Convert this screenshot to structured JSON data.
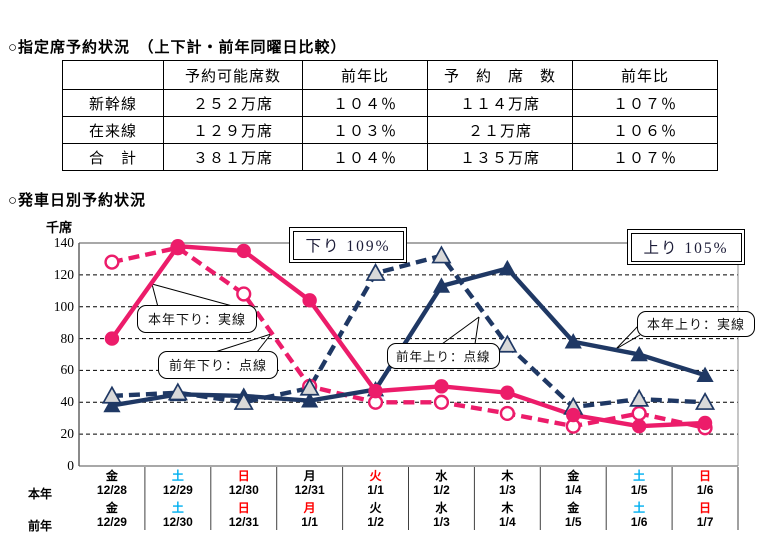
{
  "section1": {
    "title": "○指定席予約状況　（上下計・前年同曜日比較）"
  },
  "table": {
    "headers": [
      "",
      "予約可能席数",
      "前年比",
      "予　約　席　数",
      "前年比"
    ],
    "rows": [
      {
        "label": "新幹線",
        "cells": [
          "２５２万席",
          "１０４％",
          "１１４万席",
          "１０７％"
        ]
      },
      {
        "label": "在来線",
        "cells": [
          "１２９万席",
          "１０３％",
          "２１万席",
          "１０６％"
        ]
      },
      {
        "label": "合　計",
        "cells": [
          "３８１万席",
          "１０４％",
          "１３５万席",
          "１０７％"
        ]
      }
    ]
  },
  "section2": {
    "title": "○発車日別予約状況"
  },
  "chart_data": {
    "type": "line",
    "y_unit": "千席",
    "ylim": [
      0,
      140
    ],
    "yticks": [
      0,
      20,
      40,
      60,
      80,
      100,
      120,
      140
    ],
    "grid": "dashed-horizontal",
    "down_label": "下り 109%",
    "up_label": "上り 105%",
    "row_label_this": "本年",
    "row_label_prev": "前年",
    "categories_this_year": [
      {
        "day": "金",
        "date": "12/28",
        "color": "#000000"
      },
      {
        "day": "土",
        "date": "12/29",
        "color": "#00B0F0"
      },
      {
        "day": "日",
        "date": "12/30",
        "color": "#FF0000"
      },
      {
        "day": "月",
        "date": "12/31",
        "color": "#000000"
      },
      {
        "day": "火",
        "date": "1/1",
        "color": "#FF0000"
      },
      {
        "day": "水",
        "date": "1/2",
        "color": "#000000"
      },
      {
        "day": "木",
        "date": "1/3",
        "color": "#000000"
      },
      {
        "day": "金",
        "date": "1/4",
        "color": "#000000"
      },
      {
        "day": "土",
        "date": "1/5",
        "color": "#00B0F0"
      },
      {
        "day": "日",
        "date": "1/6",
        "color": "#FF0000"
      }
    ],
    "categories_prev_year": [
      {
        "day": "金",
        "date": "12/29",
        "color": "#000000"
      },
      {
        "day": "土",
        "date": "12/30",
        "color": "#00B0F0"
      },
      {
        "day": "日",
        "date": "12/31",
        "color": "#FF0000"
      },
      {
        "day": "月",
        "date": "1/1",
        "color": "#FF0000"
      },
      {
        "day": "火",
        "date": "1/2",
        "color": "#000000"
      },
      {
        "day": "水",
        "date": "1/3",
        "color": "#000000"
      },
      {
        "day": "木",
        "date": "1/4",
        "color": "#000000"
      },
      {
        "day": "金",
        "date": "1/5",
        "color": "#000000"
      },
      {
        "day": "土",
        "date": "1/6",
        "color": "#00B0F0"
      },
      {
        "day": "日",
        "date": "1/7",
        "color": "#FF0000"
      }
    ],
    "series": [
      {
        "name": "前年下り",
        "style": "dashed",
        "marker": "circle-open",
        "color": "#EC1C6A",
        "values": [
          128,
          137,
          108,
          50,
          40,
          40,
          33,
          25,
          33,
          24
        ]
      },
      {
        "name": "前年上り",
        "style": "dashed",
        "marker": "triangle-open",
        "color": "#1F3864",
        "values": [
          44,
          46,
          40,
          49,
          121,
          132,
          76,
          37,
          42,
          40
        ]
      },
      {
        "name": "本年上り",
        "style": "solid",
        "marker": "triangle-filled",
        "color": "#1F3864",
        "values": [
          38,
          45,
          44,
          41,
          48,
          113,
          124,
          78,
          70,
          57
        ]
      },
      {
        "name": "本年下り",
        "style": "solid",
        "marker": "circle-filled",
        "color": "#EC1C6A",
        "values": [
          80,
          138,
          135,
          104,
          47,
          50,
          46,
          32,
          25,
          27
        ]
      }
    ],
    "callouts": [
      {
        "text": "本年下り：実線"
      },
      {
        "text": "前年下り：点線"
      },
      {
        "text": "前年上り：点線"
      },
      {
        "text": "本年上り：実線"
      }
    ],
    "colors": {
      "pink": "#EC1C6A",
      "navy": "#1F3864",
      "open_triangle_fill": "#D9D9D9",
      "frame_gray": "#8C8C8C",
      "day_saturday": "#00B0F0",
      "day_sunday": "#FF0000"
    }
  }
}
